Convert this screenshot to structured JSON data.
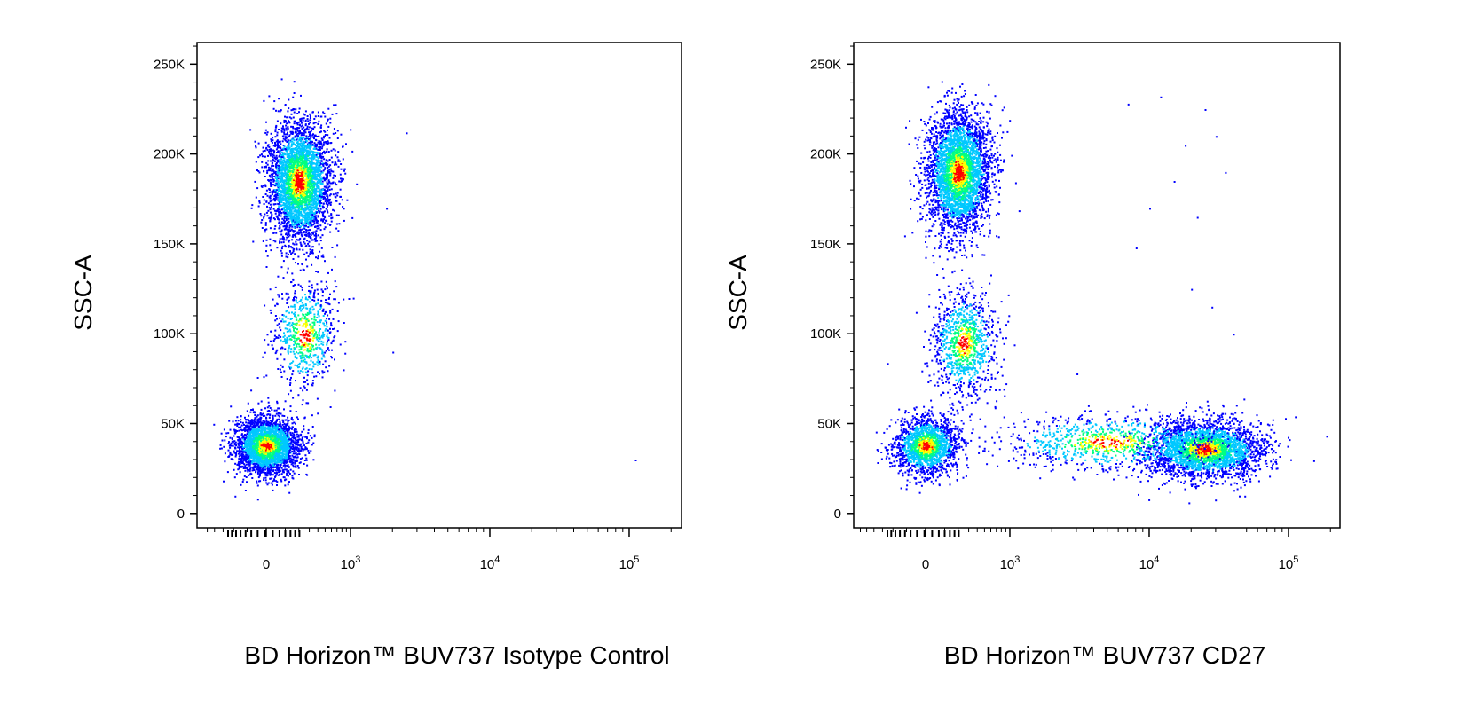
{
  "chart_data": [
    {
      "type": "scatter",
      "title": "",
      "xlabel": "BD Horizon™ BUV737 Isotype Control",
      "ylabel": "SSC-A",
      "x_scale": "biexponential",
      "x_ticks": [
        {
          "value": 0,
          "base": "0",
          "exp": ""
        },
        {
          "value": 1000,
          "base": "10",
          "exp": "3"
        },
        {
          "value": 10000,
          "base": "10",
          "exp": "4"
        },
        {
          "value": 100000,
          "base": "10",
          "exp": "5"
        }
      ],
      "y_ticks": [
        {
          "value": 0,
          "label": "0"
        },
        {
          "value": 50000,
          "label": "50K"
        },
        {
          "value": 100000,
          "label": "100K"
        },
        {
          "value": 150000,
          "label": "150K"
        },
        {
          "value": 200000,
          "label": "200K"
        },
        {
          "value": 250000,
          "label": "250K"
        }
      ],
      "ylim": [
        -8000,
        262000
      ],
      "colormap": [
        "#0000ff",
        "#00c8ff",
        "#00ff80",
        "#ffff00",
        "#ff0000"
      ],
      "populations": [
        {
          "name": "",
          "x_center": 0,
          "y_center": 38000,
          "count": 2900
        },
        {
          "name": "",
          "x_center": 200,
          "y_center": 185000,
          "count": 3600
        },
        {
          "name": "",
          "x_center": 250,
          "y_center": 100000,
          "count": 700
        }
      ],
      "outliers": [
        [
          110000,
          30000
        ],
        [
          2500,
          212000
        ],
        [
          1800,
          170000
        ],
        [
          2000,
          90000
        ]
      ]
    },
    {
      "type": "scatter",
      "title": "",
      "xlabel": "BD Horizon™ BUV737 CD27",
      "ylabel": "SSC-A",
      "x_scale": "biexponential",
      "x_ticks": [
        {
          "value": 0,
          "base": "0",
          "exp": ""
        },
        {
          "value": 1000,
          "base": "10",
          "exp": "3"
        },
        {
          "value": 10000,
          "base": "10",
          "exp": "4"
        },
        {
          "value": 100000,
          "base": "10",
          "exp": "5"
        }
      ],
      "y_ticks": [
        {
          "value": 0,
          "label": "0"
        },
        {
          "value": 50000,
          "label": "50K"
        },
        {
          "value": 100000,
          "label": "100K"
        },
        {
          "value": 150000,
          "label": "150K"
        },
        {
          "value": 200000,
          "label": "200K"
        },
        {
          "value": 250000,
          "label": "250K"
        }
      ],
      "ylim": [
        -8000,
        262000
      ],
      "colormap": [
        "#0000ff",
        "#00c8ff",
        "#00ff80",
        "#ffff00",
        "#ff0000"
      ],
      "populations": [
        {
          "name": "",
          "x_center": 0,
          "y_center": 38000,
          "count": 1700
        },
        {
          "name": "",
          "x_center": 200,
          "y_center": 190000,
          "count": 3500
        },
        {
          "name": "",
          "x_center": 250,
          "y_center": 95000,
          "count": 1000
        },
        {
          "name": "",
          "x_center": 25000,
          "y_center": 36000,
          "count": 2800
        },
        {
          "name": "",
          "x_center": 5000,
          "y_center": 40000,
          "count": 900
        }
      ],
      "outliers": [
        [
          7000,
          228000
        ],
        [
          12000,
          232000
        ],
        [
          25000,
          225000
        ],
        [
          30000,
          210000
        ],
        [
          18000,
          205000
        ],
        [
          15000,
          185000
        ],
        [
          35000,
          190000
        ],
        [
          10000,
          170000
        ],
        [
          22000,
          165000
        ],
        [
          28000,
          115000
        ],
        [
          40000,
          100000
        ],
        [
          20000,
          125000
        ],
        [
          8000,
          148000
        ]
      ]
    }
  ]
}
